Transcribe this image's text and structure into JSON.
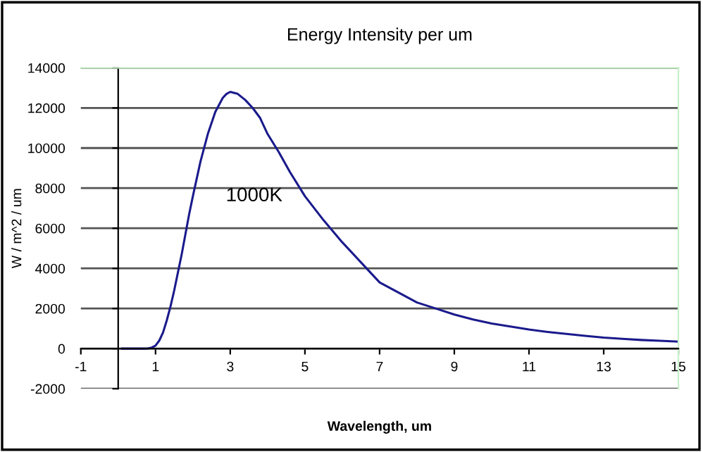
{
  "chart_data": {
    "type": "line",
    "title": "Energy Intensity per um",
    "xlabel": "Wavelength, um",
    "ylabel": "W / m^2 / um",
    "annotations": [
      "1000K"
    ],
    "series": [
      {
        "color": "#1a1a8c",
        "x": [
          0.1,
          0.3,
          0.5,
          0.7,
          0.8,
          0.9,
          1.0,
          1.1,
          1.2,
          1.3,
          1.4,
          1.5,
          1.6,
          1.7,
          1.8,
          1.9,
          2.0,
          2.2,
          2.4,
          2.6,
          2.8,
          2.9,
          3.0,
          3.2,
          3.4,
          3.6,
          3.8,
          4.0,
          4.3,
          4.6,
          5.0,
          5.5,
          6.0,
          6.5,
          7.0,
          7.5,
          8.0,
          8.5,
          9.0,
          9.5,
          10.0,
          10.5,
          11.0,
          11.5,
          12.0,
          12.5,
          13.0,
          13.5,
          14.0,
          14.5,
          15.0
        ],
        "values": [
          0,
          0,
          0,
          0,
          10,
          50,
          150,
          400,
          800,
          1400,
          2100,
          2900,
          3800,
          4700,
          5700,
          6700,
          7600,
          9300,
          10700,
          11800,
          12500,
          12700,
          12800,
          12700,
          12400,
          12000,
          11500,
          10700,
          9800,
          8800,
          7600,
          6400,
          5300,
          4300,
          3300,
          2800,
          2300,
          2000,
          1700,
          1450,
          1250,
          1100,
          950,
          830,
          730,
          640,
          550,
          490,
          430,
          390,
          350
        ]
      }
    ],
    "xlim": [
      -1,
      15
    ],
    "xticks": [
      -1,
      1,
      3,
      5,
      7,
      9,
      11,
      13,
      15
    ],
    "ylim": [
      -2000,
      14000
    ],
    "yticks": [
      -2000,
      0,
      2000,
      4000,
      6000,
      8000,
      10000,
      12000,
      14000
    ],
    "grid": "y",
    "line_style": "solid"
  }
}
